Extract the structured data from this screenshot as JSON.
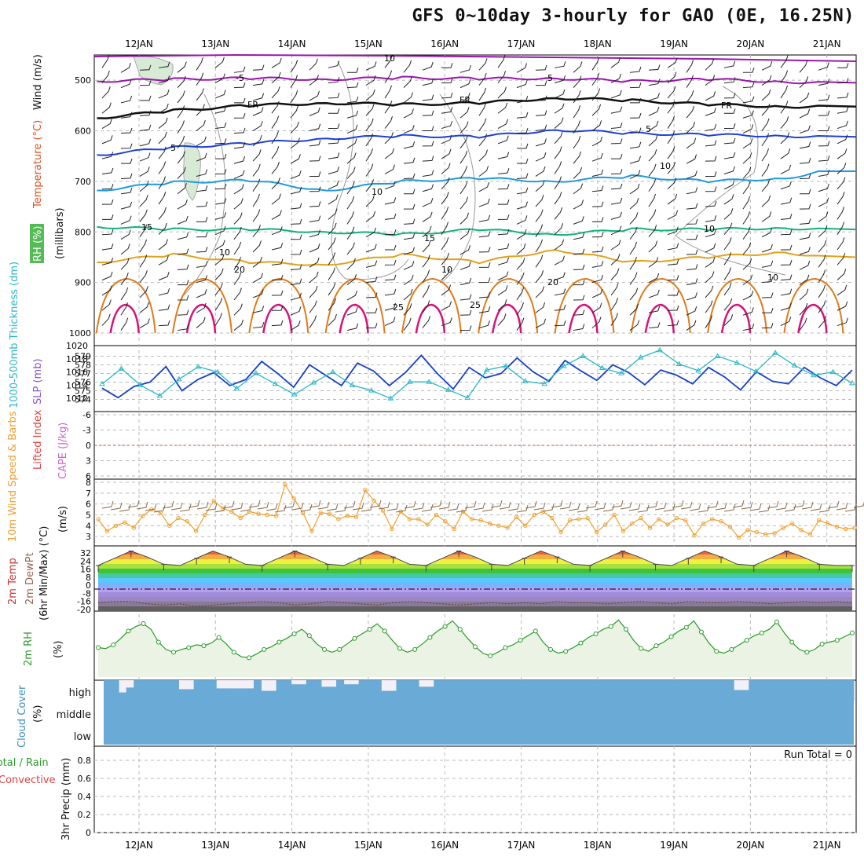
{
  "title": "GFS 0~10day 3-hourly for GAO (0E, 16.25N)",
  "colors": {
    "purple": "#9b16b0",
    "black": "#111111",
    "blue": "#1f3fd6",
    "lightblue": "#1e9ae0",
    "teal": "#12b080",
    "gold": "#e0a21a",
    "orange": "#e07a1a",
    "magenta": "#d6127a",
    "thick": "#1740c8",
    "slp": "#2ab8c8",
    "wind": "#f0a030",
    "barb": "#8b6a4a",
    "rh": "#2a9a2a",
    "cloud": "#6aaad6",
    "grid": "#b8b8b8"
  },
  "chart_data": [
    {
      "type": "line",
      "panel": "upper_air",
      "labels": {
        "rh": "RH (%)",
        "temp": "Temperature (°C)",
        "wind": "Wind (m/s)",
        "units": "(millibars)"
      },
      "y_ticks": [
        500,
        600,
        700,
        800,
        900,
        1000
      ],
      "x_dates": [
        "12JAN",
        "13JAN",
        "14JAN",
        "15JAN",
        "16JAN",
        "17JAN",
        "18JAN",
        "19JAN",
        "20JAN",
        "21JAN"
      ],
      "isotherms": [
        {
          "label": "-5",
          "x": [
            0,
            1,
            2,
            3,
            4,
            5,
            6,
            7,
            8,
            9,
            9.5
          ],
          "p": [
            502,
            498,
            496,
            498,
            495,
            497,
            496,
            502,
            498,
            503,
            505
          ]
        },
        {
          "label": "FR",
          "x": [
            0,
            1,
            2,
            3,
            4,
            5,
            6,
            7,
            8,
            9,
            9.5
          ],
          "p": [
            575,
            560,
            550,
            545,
            548,
            545,
            535,
            540,
            548,
            552,
            552
          ]
        },
        {
          "label": "5",
          "x": [
            0,
            1,
            2,
            3,
            4,
            5,
            6,
            7,
            8,
            9,
            9.5
          ],
          "p": [
            648,
            633,
            625,
            615,
            610,
            612,
            598,
            605,
            608,
            610,
            612
          ]
        },
        {
          "label": "10",
          "x": [
            0,
            1,
            2,
            3,
            4,
            5,
            6,
            7,
            8,
            9,
            9.5
          ],
          "p": [
            718,
            702,
            698,
            718,
            700,
            694,
            700,
            690,
            700,
            694,
            680
          ]
        },
        {
          "label": "15",
          "x": [
            0,
            1,
            2,
            3,
            4,
            5,
            6,
            7,
            8,
            9,
            9.5
          ],
          "p": [
            790,
            795,
            795,
            800,
            805,
            795,
            805,
            795,
            795,
            792,
            795
          ]
        },
        {
          "label": "20",
          "x": [
            0,
            1,
            2,
            3,
            4,
            5,
            6,
            7,
            8,
            9,
            9.5
          ],
          "p": [
            860,
            845,
            860,
            865,
            845,
            860,
            835,
            860,
            850,
            840,
            850
          ]
        }
      ],
      "isotherm_labels": [
        "-5",
        "-5",
        "FR",
        "FR",
        "FR",
        "5",
        "5",
        "10",
        "10",
        "15",
        "15",
        "20",
        "20",
        "10",
        "10",
        "10",
        "10",
        "10",
        "25",
        "25"
      ]
    },
    {
      "type": "line",
      "panel": "thickness_slp",
      "labels": {
        "thick": "1000-500mb Thickness (dm)",
        "slp": "SLP (mb)"
      },
      "thickness_ticks": [
        574,
        575,
        576,
        577,
        578,
        579
      ],
      "slp_ticks": [
        1012,
        1014,
        1016,
        1018,
        1020
      ],
      "thickness": [
        575.3,
        574.2,
        575.5,
        576.0,
        577.8,
        575.0,
        576.3,
        577.1,
        575.6,
        576.3,
        578.4,
        577.0,
        575.4,
        578.0,
        576.8,
        575.6,
        578.2,
        577.3,
        575.6,
        577.1,
        579.1,
        577.0,
        575.2,
        577.7,
        576.5,
        577.0,
        578.8,
        577.2,
        576.1,
        578.5,
        577.3,
        576.2,
        578.0,
        577.1,
        575.7,
        577.4,
        576.8,
        575.8,
        577.7,
        576.6,
        575.1,
        577.2,
        576.1,
        575.8,
        577.7,
        576.5,
        575.6,
        577.4
      ],
      "slp": [
        1014.2,
        1016.5,
        1014.0,
        1012.4,
        1014.9,
        1016.8,
        1016.0,
        1013.5,
        1015.8,
        1014.2,
        1012.6,
        1014.4,
        1016.0,
        1014.0,
        1013.2,
        1012.0,
        1014.5,
        1014.5,
        1013.3,
        1012.1,
        1016.3,
        1016.9,
        1014.6,
        1014.2,
        1016.9,
        1018.4,
        1016.6,
        1015.8,
        1018.2,
        1019.3,
        1017.2,
        1016.2,
        1018.4,
        1017.4,
        1016.1,
        1018.9,
        1017.0,
        1015.5,
        1016.0,
        1014.3
      ],
      "x_slp_step": 0.25
    },
    {
      "type": "line",
      "panel": "cape_li",
      "labels": {
        "li": "Lifted Index",
        "cape": "CAPE (J/kg)"
      },
      "y_ticks": [
        "-6",
        "-3",
        "0",
        "3",
        "6"
      ],
      "zero_line": 0
    },
    {
      "type": "line",
      "panel": "wind10m",
      "labels": {
        "wind": "10m Wind Speed & Barbs",
        "units": "(m/s)"
      },
      "y_ticks": [
        3,
        4,
        5,
        6,
        7,
        8
      ],
      "speed": [
        4.6,
        3.5,
        4.0,
        4.3,
        3.8,
        4.9,
        5.5,
        5.2,
        4.0,
        4.7,
        4.4,
        3.5,
        5.0,
        6.3,
        5.6,
        5.3,
        4.7,
        5.3,
        5.1,
        5.0,
        4.9,
        7.8,
        6.5,
        5.2,
        3.5,
        5.2,
        5.1,
        4.6,
        4.9,
        4.8,
        7.3,
        6.3,
        5.4,
        3.7,
        5.3,
        4.6,
        4.6,
        4.1,
        5.0,
        4.4,
        3.7,
        5.3,
        4.6,
        4.5,
        4.2,
        4.0,
        3.8,
        4.8,
        4.0,
        5.0,
        5.3,
        4.7,
        3.4,
        4.5,
        4.6,
        4.7,
        3.4,
        4.1,
        5.0,
        3.5,
        4.2,
        4.7,
        3.8,
        4.6,
        4.1,
        4.7,
        4.5,
        3.1,
        4.2,
        4.6,
        4.4,
        3.9,
        2.9,
        3.6,
        3.4,
        3.2,
        3.3,
        3.8,
        4.2,
        3.6,
        3.2,
        4.5,
        4.2,
        3.9,
        3.7,
        3.8
      ]
    },
    {
      "type": "area",
      "panel": "temp2m",
      "labels": {
        "temp": "2m Temp",
        "dewpt": "2m DewPt",
        "minmax": "(6hr Min/Max) (°C)"
      },
      "y_ticks": [
        "32",
        "24",
        "16",
        "8",
        "0",
        "-8",
        "-16",
        "-20"
      ],
      "temp": [
        21,
        27,
        33,
        28,
        22,
        21,
        27,
        33,
        28,
        22,
        21,
        27,
        33,
        28,
        22,
        21,
        27,
        33,
        28,
        22,
        21,
        27,
        33,
        28,
        22,
        21,
        27,
        33,
        28,
        22,
        21,
        27,
        33,
        28,
        22,
        21,
        27,
        33,
        28,
        22,
        21,
        27,
        33,
        28,
        22,
        21,
        21
      ],
      "dewpt": [
        -10,
        -9,
        -9,
        -11,
        -12,
        -11,
        -13,
        -12,
        -11,
        -10,
        -9,
        -10,
        -12,
        -11,
        -9,
        -10,
        -11,
        -12,
        -10,
        -9,
        -10,
        -11,
        -12,
        -11,
        -10,
        -11,
        -10,
        -11,
        -9,
        -10,
        -10,
        -11,
        -10,
        -9,
        -10,
        -11,
        -9,
        -10,
        -10,
        -9,
        -10,
        -11,
        -10,
        -9,
        -10,
        -9,
        -10
      ]
    },
    {
      "type": "line",
      "panel": "rh2m",
      "labels": {
        "rh": "2m RH",
        "units": "(%)"
      },
      "rh": [
        32,
        31,
        35,
        42,
        50,
        55,
        58,
        52,
        38,
        30,
        27,
        30,
        32,
        35,
        34,
        37,
        43,
        36,
        27,
        22,
        21,
        25,
        30,
        33,
        38,
        42,
        47,
        52,
        45,
        36,
        30,
        27,
        30,
        36,
        42,
        47,
        52,
        58,
        50,
        40,
        31,
        27,
        30,
        36,
        43,
        50,
        55,
        61,
        52,
        42,
        33,
        26,
        23,
        27,
        32,
        35,
        40,
        45,
        50,
        38,
        30,
        26,
        28,
        32,
        37,
        43,
        47,
        52,
        55,
        62,
        52,
        40,
        31,
        28,
        34,
        38,
        44,
        50,
        54,
        61,
        49,
        37,
        28,
        26,
        30,
        35,
        40,
        45,
        48,
        52,
        60,
        48,
        38,
        30,
        27,
        30,
        36,
        38,
        40,
        44,
        48
      ]
    },
    {
      "type": "bar",
      "panel": "cloud",
      "labels": {
        "cloud": "Cloud Cover",
        "units": "(%)",
        "high": "high",
        "middle": "middle",
        "low": "low"
      },
      "high": [
        0,
        0,
        15,
        9,
        0,
        0,
        0,
        0,
        0,
        0,
        11,
        11,
        0,
        0,
        0,
        10,
        10,
        10,
        10,
        10,
        100,
        13,
        13,
        0,
        0,
        5,
        5,
        0,
        0,
        8,
        8,
        0,
        5,
        5,
        0,
        0,
        100,
        13,
        13,
        0,
        0,
        0,
        8,
        8,
        0,
        0,
        0,
        0,
        0,
        0,
        0,
        0,
        0,
        0,
        0,
        0,
        0,
        0,
        100,
        100,
        100,
        100,
        100,
        100,
        0,
        0,
        0,
        0,
        0,
        0,
        0,
        0,
        0,
        0,
        0,
        0,
        0,
        0,
        0,
        0,
        0,
        0,
        0,
        0,
        12,
        12,
        0,
        100,
        100,
        100,
        100,
        100,
        100,
        100,
        100,
        100,
        100,
        100,
        100,
        100
      ]
    },
    {
      "type": "bar",
      "panel": "precip",
      "labels": {
        "precip": "3hr Precip (mm)",
        "total_rain": "Total / Rain",
        "convective": "Convective",
        "run_total": "Run Total = 0"
      },
      "y_ticks": [
        "0",
        "0.2",
        "0.4",
        "0.6",
        "0.8"
      ],
      "values": []
    }
  ]
}
